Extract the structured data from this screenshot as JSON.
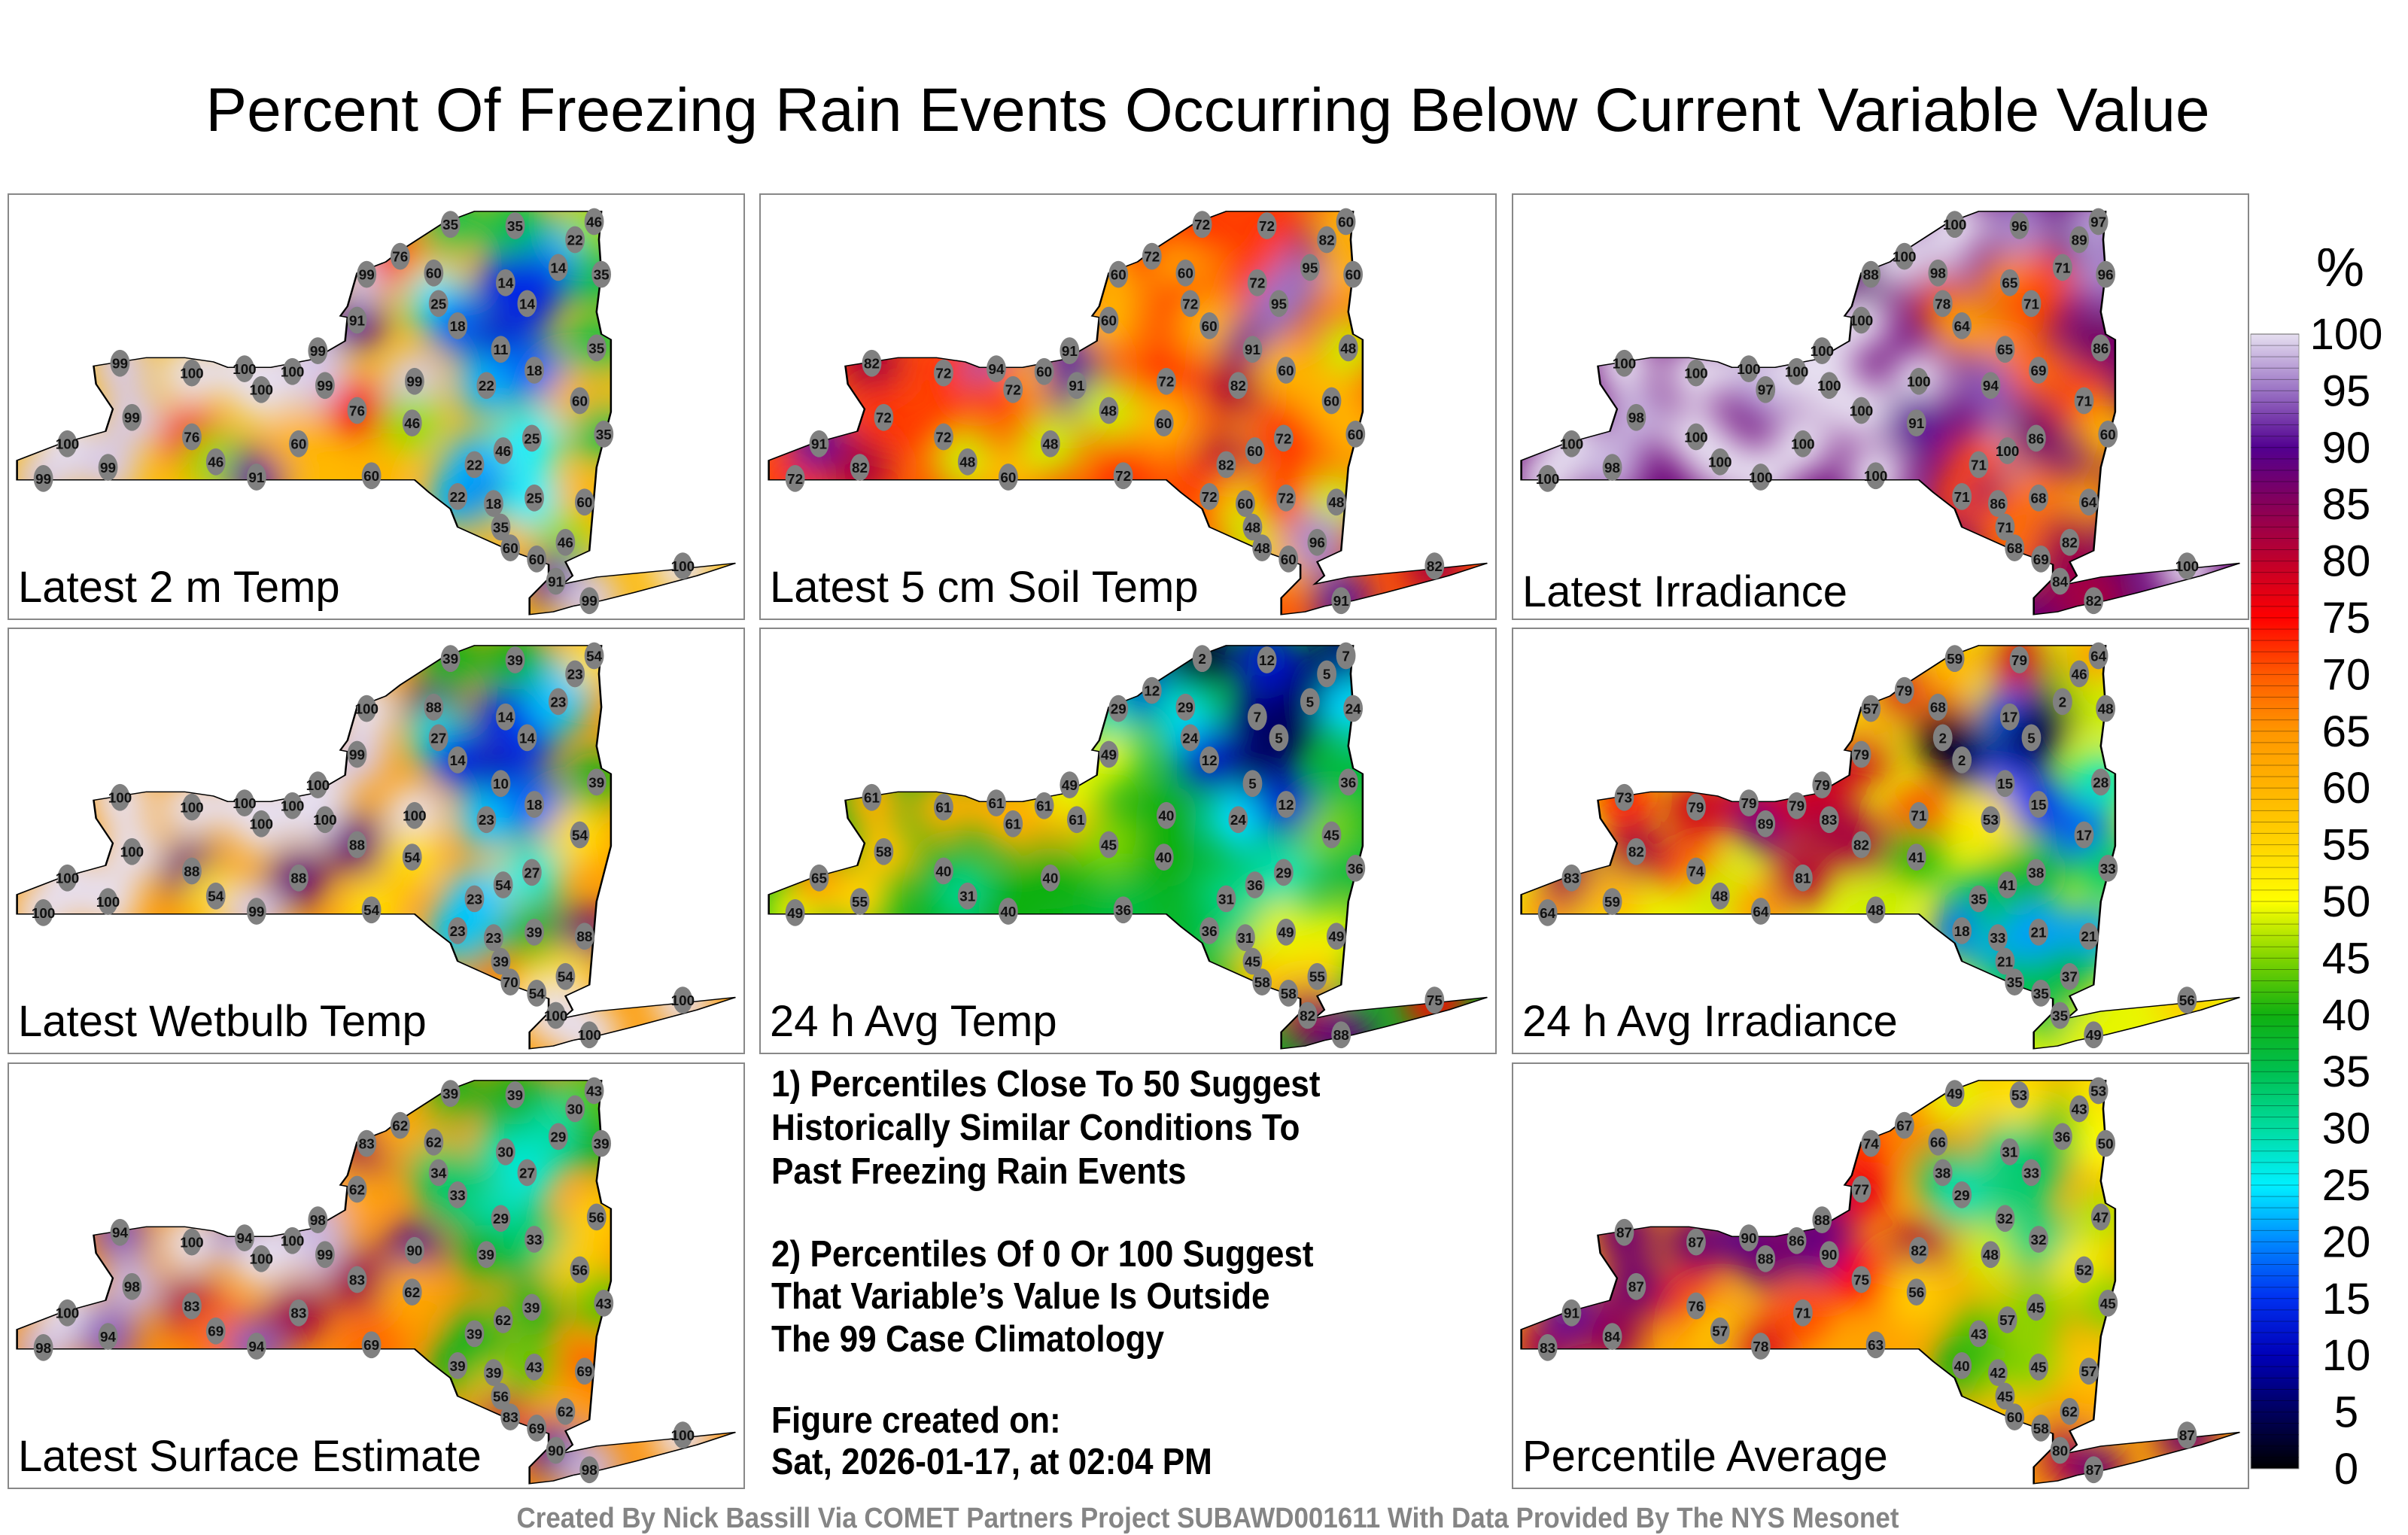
{
  "title": "Percent Of Freezing Rain Events Occurring Below Current Variable Value",
  "footer": "Created By Nick Bassill Via COMET Partners Project SUBAWD001611 With Data Provided By The NYS Mesonet",
  "notes": [
    "1) Percentiles Close To 50 Suggest",
    "Historically Similar Conditions To",
    "Past Freezing Rain Events",
    "2) Percentiles Of 0 Or 100 Suggest",
    "That Variable’s Value Is Outside",
    "The 99 Case Climatology",
    "Figure created on:",
    "Sat, 2026-01-17, at 02:04 PM"
  ],
  "colorbar": {
    "unit": "%",
    "ticks": [
      "100",
      "95",
      "90",
      "85",
      "80",
      "75",
      "70",
      "65",
      "60",
      "55",
      "50",
      "45",
      "40",
      "35",
      "30",
      "25",
      "20",
      "15",
      "10",
      "5",
      "0"
    ],
    "stops": [
      [
        0,
        "#000000"
      ],
      [
        5,
        "#00005e"
      ],
      [
        10,
        "#0000b8"
      ],
      [
        15,
        "#0030f0"
      ],
      [
        20,
        "#0088ff"
      ],
      [
        25,
        "#00f0ff"
      ],
      [
        30,
        "#00dca0"
      ],
      [
        35,
        "#00c050"
      ],
      [
        40,
        "#10b010"
      ],
      [
        45,
        "#80d400"
      ],
      [
        50,
        "#ffff00"
      ],
      [
        55,
        "#ffd400"
      ],
      [
        60,
        "#ffb400"
      ],
      [
        65,
        "#ff9600"
      ],
      [
        70,
        "#ff5a00"
      ],
      [
        75,
        "#ff0000"
      ],
      [
        80,
        "#c0002c"
      ],
      [
        85,
        "#86005a"
      ],
      [
        90,
        "#520090"
      ],
      [
        95,
        "#9a72c4"
      ],
      [
        100,
        "#e6dff0"
      ]
    ]
  },
  "panels": [
    {
      "label": "Latest 2 m Temp",
      "values": [
        99,
        100,
        99,
        99,
        99,
        100,
        76,
        46,
        100,
        100,
        91,
        60,
        100,
        99,
        99,
        76,
        60,
        91,
        99,
        76,
        99,
        46,
        60,
        35,
        25,
        18,
        11,
        14,
        35,
        22,
        46,
        22,
        22,
        18,
        35,
        60,
        14,
        18,
        25,
        25,
        60,
        14,
        22,
        46,
        35,
        35,
        60,
        35,
        60,
        46,
        91,
        99,
        100
      ]
    },
    {
      "label": "Latest 5 cm Soil Temp",
      "values": [
        72,
        91,
        82,
        72,
        82,
        72,
        72,
        48,
        94,
        72,
        60,
        48,
        60,
        91,
        91,
        48,
        72,
        60,
        60,
        72,
        72,
        60,
        60,
        72,
        72,
        60,
        91,
        72,
        72,
        82,
        60,
        82,
        72,
        60,
        48,
        48,
        95,
        60,
        72,
        72,
        60,
        95,
        82,
        60,
        60,
        48,
        60,
        60,
        48,
        96,
        null,
        91,
        82
      ]
    },
    {
      "label": "Latest Irradiance",
      "values": [
        100,
        100,
        100,
        98,
        98,
        100,
        100,
        100,
        100,
        97,
        100,
        100,
        100,
        100,
        100,
        100,
        100,
        100,
        88,
        100,
        100,
        91,
        98,
        100,
        78,
        64,
        65,
        65,
        96,
        94,
        100,
        71,
        71,
        86,
        71,
        68,
        71,
        69,
        86,
        68,
        69,
        71,
        89,
        97,
        96,
        86,
        71,
        60,
        64,
        82,
        84,
        82,
        100
      ]
    },
    {
      "label": "Latest Wetbulb Temp",
      "values": [
        100,
        100,
        100,
        100,
        100,
        100,
        88,
        54,
        100,
        100,
        99,
        88,
        100,
        100,
        100,
        88,
        54,
        99,
        100,
        null,
        100,
        54,
        88,
        39,
        27,
        14,
        10,
        14,
        39,
        23,
        54,
        23,
        23,
        23,
        39,
        70,
        14,
        18,
        27,
        39,
        54,
        23,
        23,
        54,
        null,
        39,
        54,
        null,
        88,
        54,
        100,
        100,
        100
      ]
    },
    {
      "label": "24 h Avg Temp",
      "values": [
        49,
        65,
        61,
        58,
        55,
        61,
        40,
        31,
        61,
        61,
        40,
        40,
        61,
        61,
        49,
        45,
        36,
        49,
        29,
        12,
        40,
        40,
        29,
        2,
        24,
        12,
        5,
        7,
        12,
        24,
        36,
        31,
        36,
        31,
        45,
        58,
        5,
        12,
        29,
        49,
        58,
        5,
        5,
        7,
        24,
        36,
        45,
        36,
        49,
        55,
        82,
        88,
        75
      ]
    },
    {
      "label": "24 h Avg Irradiance",
      "values": [
        64,
        83,
        73,
        82,
        59,
        79,
        74,
        48,
        79,
        89,
        64,
        81,
        79,
        83,
        79,
        82,
        48,
        79,
        57,
        79,
        71,
        41,
        68,
        59,
        2,
        2,
        15,
        17,
        79,
        53,
        41,
        35,
        18,
        33,
        21,
        35,
        5,
        15,
        38,
        21,
        35,
        2,
        46,
        64,
        48,
        28,
        17,
        33,
        21,
        37,
        35,
        49,
        56
      ]
    },
    {
      "label": "Latest Surface Estimate",
      "values": [
        98,
        100,
        94,
        98,
        94,
        100,
        83,
        69,
        94,
        100,
        94,
        83,
        100,
        99,
        98,
        83,
        69,
        62,
        83,
        62,
        90,
        62,
        62,
        39,
        34,
        33,
        29,
        30,
        39,
        39,
        62,
        39,
        39,
        39,
        56,
        83,
        27,
        33,
        39,
        43,
        69,
        29,
        30,
        43,
        39,
        56,
        56,
        43,
        69,
        62,
        90,
        98,
        100
      ]
    },
    {
      "label": "Percentile Average",
      "values": [
        83,
        91,
        87,
        87,
        84,
        87,
        76,
        57,
        90,
        88,
        78,
        71,
        86,
        90,
        88,
        75,
        63,
        77,
        74,
        67,
        82,
        56,
        66,
        49,
        38,
        29,
        32,
        31,
        53,
        48,
        57,
        43,
        40,
        42,
        45,
        60,
        33,
        32,
        45,
        45,
        58,
        36,
        43,
        53,
        50,
        47,
        52,
        45,
        57,
        62,
        80,
        87,
        87
      ]
    }
  ]
}
